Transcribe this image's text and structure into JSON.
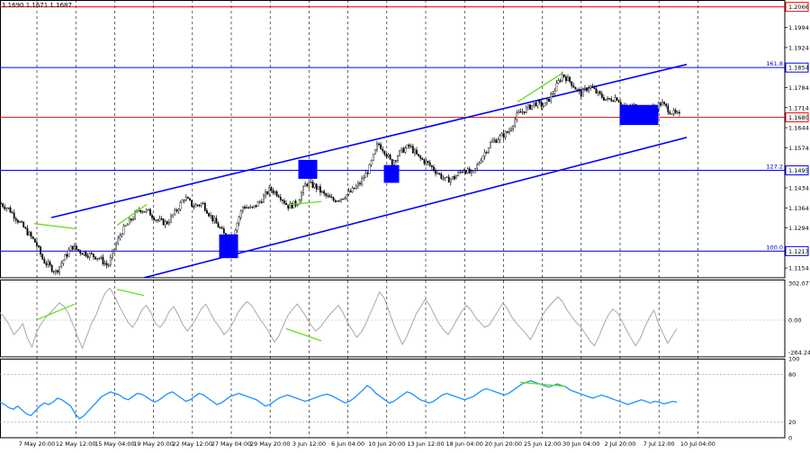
{
  "header": {
    "ohlc_readout": "1.1690 1.1671 1.1687"
  },
  "chart_data": {
    "type": "candlestick",
    "price": {
      "ylim": [
        1.112,
        1.209
      ],
      "y_ticks": [
        "1.1994",
        "1.1924",
        "1.1854",
        "1.1784",
        "1.1714",
        "1.1644",
        "1.1574",
        "1.1495",
        "1.1434",
        "1.1364",
        "1.1294",
        "1.1213",
        "1.1154"
      ],
      "levels": [
        {
          "value": 1.2066,
          "label": "1.2066",
          "color": "#ff0000",
          "fib": ""
        },
        {
          "value": 1.1854,
          "label": "1.1854",
          "color": "#0000ff",
          "fib": "161.8"
        },
        {
          "value": 1.168,
          "label": "1.1680",
          "color": "#ff0000",
          "fib": ""
        },
        {
          "value": 1.1495,
          "label": "1.1495",
          "color": "#0000ff",
          "fib": "127.2"
        },
        {
          "value": 1.1213,
          "label": "1.1213",
          "color": "#0000ff",
          "fib": "100.0"
        }
      ],
      "channel": {
        "color": "#0000ff",
        "upper": [
          {
            "x": 57,
            "y": 1.133
          },
          {
            "x": 763,
            "y": 1.1865
          }
        ],
        "lower": [
          {
            "x": 160,
            "y": 1.112
          },
          {
            "x": 763,
            "y": 1.161
          }
        ]
      },
      "boxes": [
        {
          "x": 244,
          "w": 20,
          "y_top": 1.127,
          "y_bot": 1.119
        },
        {
          "x": 332,
          "w": 20,
          "y_top": 1.153,
          "y_bot": 1.1467
        },
        {
          "x": 427,
          "w": 16,
          "y_top": 1.1512,
          "y_bot": 1.1453
        },
        {
          "x": 689,
          "w": 42,
          "y_top": 1.1722,
          "y_bot": 1.1655
        }
      ],
      "divergences": [
        [
          {
            "x": 38,
            "y": 1.1309
          },
          {
            "x": 85,
            "y": 1.1291
          }
        ],
        [
          {
            "x": 130,
            "y": 1.1303
          },
          {
            "x": 163,
            "y": 1.1376
          }
        ],
        [
          {
            "x": 320,
            "y": 1.1375
          },
          {
            "x": 357,
            "y": 1.1386
          }
        ],
        [
          {
            "x": 575,
            "y": 1.1734
          },
          {
            "x": 626,
            "y": 1.1837
          }
        ]
      ],
      "path": [
        [
          0,
          1.138
        ],
        [
          10,
          1.136
        ],
        [
          20,
          1.132
        ],
        [
          30,
          1.128
        ],
        [
          40,
          1.124
        ],
        [
          48,
          1.118
        ],
        [
          55,
          1.116
        ],
        [
          62,
          1.114
        ],
        [
          70,
          1.118
        ],
        [
          80,
          1.123
        ],
        [
          90,
          1.121
        ],
        [
          100,
          1.12
        ],
        [
          110,
          1.119
        ],
        [
          120,
          1.116
        ],
        [
          128,
          1.123
        ],
        [
          135,
          1.128
        ],
        [
          145,
          1.132
        ],
        [
          155,
          1.136
        ],
        [
          165,
          1.135
        ],
        [
          175,
          1.132
        ],
        [
          185,
          1.131
        ],
        [
          195,
          1.135
        ],
        [
          205,
          1.14
        ],
        [
          215,
          1.137
        ],
        [
          225,
          1.138
        ],
        [
          235,
          1.133
        ],
        [
          245,
          1.129
        ],
        [
          255,
          1.124
        ],
        [
          262,
          1.13
        ],
        [
          270,
          1.137
        ],
        [
          280,
          1.136
        ],
        [
          290,
          1.139
        ],
        [
          300,
          1.143
        ],
        [
          310,
          1.141
        ],
        [
          320,
          1.137
        ],
        [
          330,
          1.138
        ],
        [
          340,
          1.145
        ],
        [
          350,
          1.144
        ],
        [
          360,
          1.141
        ],
        [
          370,
          1.139
        ],
        [
          380,
          1.14
        ],
        [
          390,
          1.142
        ],
        [
          400,
          1.145
        ],
        [
          410,
          1.15
        ],
        [
          420,
          1.159
        ],
        [
          428,
          1.156
        ],
        [
          435,
          1.152
        ],
        [
          445,
          1.156
        ],
        [
          455,
          1.158
        ],
        [
          465,
          1.154
        ],
        [
          475,
          1.152
        ],
        [
          485,
          1.149
        ],
        [
          495,
          1.146
        ],
        [
          505,
          1.147
        ],
        [
          515,
          1.15
        ],
        [
          525,
          1.148
        ],
        [
          535,
          1.154
        ],
        [
          545,
          1.159
        ],
        [
          555,
          1.161
        ],
        [
          565,
          1.163
        ],
        [
          575,
          1.169
        ],
        [
          585,
          1.171
        ],
        [
          595,
          1.173
        ],
        [
          605,
          1.172
        ],
        [
          615,
          1.177
        ],
        [
          625,
          1.183
        ],
        [
          635,
          1.18
        ],
        [
          645,
          1.176
        ],
        [
          655,
          1.179
        ],
        [
          665,
          1.176
        ],
        [
          675,
          1.174
        ],
        [
          685,
          1.175
        ],
        [
          695,
          1.171
        ],
        [
          705,
          1.172
        ],
        [
          715,
          1.17
        ],
        [
          725,
          1.171
        ],
        [
          735,
          1.173
        ],
        [
          745,
          1.17
        ],
        [
          755,
          1.1685
        ]
      ]
    },
    "cci": {
      "ylim": [
        -300,
        330
      ],
      "ticks": [
        {
          "value": 302.077,
          "label": "302.077"
        },
        {
          "value": 0,
          "label": "0.00"
        },
        {
          "value": -264.246,
          "label": "-264.246"
        }
      ],
      "divergences": [
        [
          {
            "x": 40,
            "y": 0
          },
          {
            "x": 83,
            "y": 130
          }
        ],
        [
          {
            "x": 130,
            "y": 250
          },
          {
            "x": 160,
            "y": 200
          }
        ],
        [
          {
            "x": 318,
            "y": -70
          },
          {
            "x": 357,
            "y": -170
          }
        ]
      ],
      "values": [
        60,
        20,
        -40,
        -120,
        -80,
        -30,
        -150,
        -220,
        -100,
        -30,
        20,
        60,
        100,
        140,
        110,
        50,
        -40,
        -140,
        -230,
        -130,
        -30,
        40,
        140,
        220,
        260,
        200,
        120,
        50,
        -20,
        -60,
        0,
        80,
        120,
        60,
        -30,
        -60,
        -10,
        70,
        110,
        40,
        -40,
        -90,
        -40,
        20,
        90,
        130,
        60,
        -10,
        -60,
        -120,
        -80,
        -20,
        60,
        110,
        150,
        120,
        60,
        0,
        -50,
        -110,
        -180,
        -130,
        -40,
        40,
        90,
        130,
        80,
        20,
        -40,
        -90,
        -60,
        -10,
        40,
        80,
        120,
        60,
        -20,
        -80,
        -140,
        -100,
        -30,
        60,
        140,
        230,
        180,
        80,
        -30,
        -120,
        -200,
        -130,
        -40,
        50,
        110,
        170,
        120,
        40,
        -30,
        -80,
        -120,
        -60,
        10,
        70,
        120,
        80,
        20,
        -20,
        -60,
        -40,
        20,
        80,
        140,
        90,
        20,
        -30,
        -70,
        -110,
        -160,
        -90,
        -10,
        60,
        110,
        150,
        190,
        150,
        80,
        30,
        -20,
        -60,
        -110,
        -170,
        -210,
        -130,
        -40,
        40,
        90,
        60,
        -10,
        -80,
        -150,
        -210,
        -150,
        -60,
        20,
        80,
        -30,
        -110,
        -190,
        -130,
        -70
      ],
      "x_start": 0,
      "x_end": 752
    },
    "rsi": {
      "ylim": [
        0,
        100
      ],
      "ticks": [
        {
          "value": 100,
          "label": "100"
        },
        {
          "value": 80,
          "label": "80"
        },
        {
          "value": 20,
          "label": "20"
        },
        {
          "value": 0,
          "label": "0"
        }
      ],
      "divergences": [
        [
          {
            "x": 578,
            "y": 70
          },
          {
            "x": 628,
            "y": 65
          }
        ]
      ],
      "values": [
        45,
        42,
        38,
        36,
        40,
        35,
        30,
        28,
        34,
        40,
        44,
        42,
        45,
        50,
        48,
        44,
        40,
        30,
        24,
        28,
        34,
        40,
        46,
        52,
        55,
        58,
        56,
        54,
        50,
        48,
        52,
        56,
        55,
        52,
        48,
        45,
        48,
        52,
        56,
        58,
        54,
        50,
        46,
        48,
        52,
        56,
        54,
        50,
        46,
        42,
        44,
        48,
        52,
        54,
        56,
        54,
        52,
        50,
        48,
        44,
        40,
        42,
        46,
        50,
        52,
        54,
        52,
        50,
        48,
        46,
        48,
        50,
        52,
        54,
        55,
        53,
        50,
        47,
        44,
        46,
        50,
        55,
        60,
        66,
        62,
        56,
        52,
        48,
        44,
        46,
        50,
        54,
        58,
        56,
        52,
        48,
        46,
        44,
        46,
        50,
        54,
        56,
        54,
        52,
        50,
        48,
        50,
        52,
        56,
        60,
        62,
        60,
        58,
        56,
        54,
        56,
        60,
        64,
        68,
        70,
        72,
        70,
        68,
        66,
        64,
        66,
        68,
        66,
        64,
        60,
        58,
        56,
        54,
        52,
        50,
        52,
        54,
        52,
        50,
        48,
        46,
        44,
        42,
        44,
        46,
        48,
        46,
        44,
        46,
        45,
        43,
        44,
        46,
        45
      ],
      "x_start": 0,
      "x_end": 752
    },
    "x_ticks": [
      "7 May 20:00",
      "12 May 12:00",
      "15 May 04:00",
      "19 May 20:00",
      "22 May 12:00",
      "27 May 04:00",
      "29 May 20:00",
      "3 Jun 12:00",
      "6 Jun 04:00",
      "10 Jun 20:00",
      "13 Jun 12:00",
      "18 Jun 04:00",
      "20 Jun 20:00",
      "25 Jun 12:00",
      "30 Jun 04:00",
      "2 Jul 20:00",
      "7 Jul 12:00",
      "10 Jul 04:00"
    ],
    "colors": {
      "candle": "#000000",
      "cci_line": "#a8a8a8",
      "rsi_line": "#1e90ff",
      "divergence": "#66dd22",
      "grid": "#000000",
      "label_bg": "#ffffff"
    }
  }
}
